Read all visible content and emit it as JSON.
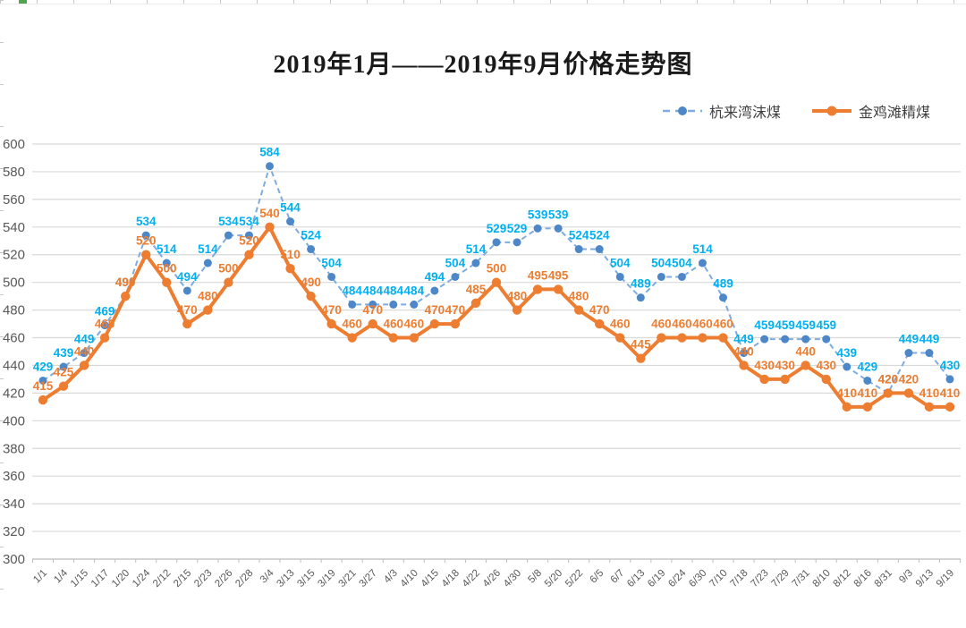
{
  "chart_data": {
    "type": "line",
    "title": "2019年1月——2019年9月价格走势图",
    "categories": [
      "1/1",
      "1/4",
      "1/15",
      "1/17",
      "1/20",
      "1/24",
      "2/12",
      "2/15",
      "2/23",
      "2/26",
      "2/28",
      "3/4",
      "3/13",
      "3/15",
      "3/19",
      "3/21",
      "3/27",
      "4/3",
      "4/10",
      "4/15",
      "4/18",
      "4/22",
      "4/26",
      "4/30",
      "5/8",
      "5/20",
      "5/22",
      "6/5",
      "6/7",
      "6/13",
      "6/19",
      "6/24",
      "6/30",
      "7/10",
      "7/18",
      "7/23",
      "7/29",
      "7/31",
      "8/10",
      "8/12",
      "8/16",
      "8/31",
      "9/3",
      "9/13",
      "9/19"
    ],
    "series": [
      {
        "name": "杭来湾沫煤",
        "style": "dashed",
        "line_color": "#7EACDF",
        "dot_color": "#4E87C8",
        "label_color": "#00B0F0",
        "values": [
          429,
          439,
          449,
          469,
          490,
          534,
          514,
          494,
          514,
          534,
          534,
          584,
          544,
          524,
          504,
          484,
          484,
          484,
          484,
          494,
          504,
          514,
          529,
          529,
          539,
          539,
          524,
          524,
          504,
          489,
          504,
          504,
          514,
          489,
          449,
          459,
          459,
          459,
          459,
          439,
          429,
          420,
          449,
          449,
          430
        ]
      },
      {
        "name": "金鸡滩精煤",
        "style": "solid",
        "line_color": "#ED7D31",
        "dot_color": "#ED7D31",
        "label_color": "#ED7D31",
        "values": [
          415,
          425,
          440,
          460,
          490,
          520,
          500,
          470,
          480,
          500,
          520,
          540,
          510,
          490,
          470,
          460,
          470,
          460,
          460,
          470,
          470,
          485,
          500,
          480,
          495,
          495,
          480,
          470,
          460,
          445,
          460,
          460,
          460,
          460,
          440,
          430,
          430,
          440,
          430,
          410,
          410,
          420,
          420,
          410,
          410
        ]
      }
    ],
    "ylim": [
      300,
      600
    ],
    "ytick_step": 20,
    "yticks": [
      300,
      320,
      340,
      360,
      380,
      400,
      420,
      440,
      460,
      480,
      500,
      520,
      540,
      560,
      580,
      600
    ],
    "grid": "horizontal",
    "legend_position": "top-right",
    "axis_text_color": "#595959",
    "gridline_color": "#D9D9D9",
    "axis_line_color": "#BFBFBF"
  }
}
